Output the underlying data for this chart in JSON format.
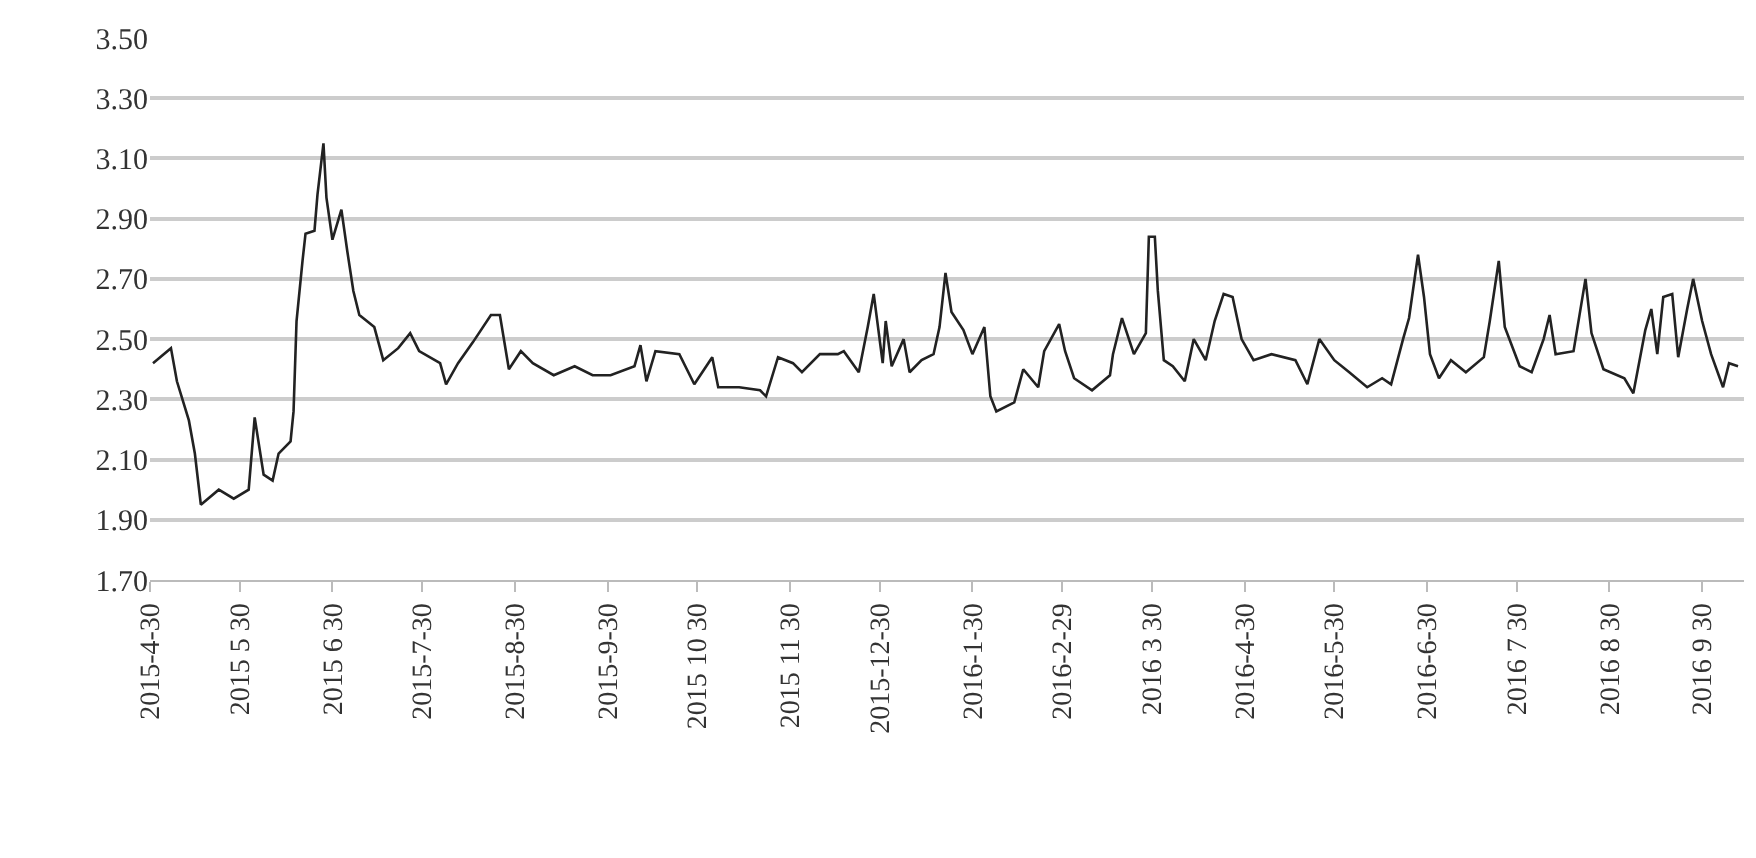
{
  "chart_data": {
    "type": "line",
    "line_style": "solid",
    "marker": "none",
    "grid": "y",
    "xlim": [
      "2015-04-30",
      "2016-10-14"
    ],
    "xticks": [
      {
        "value": "2015-04-30",
        "label": "2015-4-30"
      },
      {
        "value": "2015-05-30",
        "label": "2015 5 30"
      },
      {
        "value": "2015-06-30",
        "label": "2015 6 30"
      },
      {
        "value": "2015-07-30",
        "label": "2015-7-30"
      },
      {
        "value": "2015-08-30",
        "label": "2015-8-30"
      },
      {
        "value": "2015-09-30",
        "label": "2015-9-30"
      },
      {
        "value": "2015-10-30",
        "label": "2015 10 30"
      },
      {
        "value": "2015-11-30",
        "label": "2015 11 30"
      },
      {
        "value": "2015-12-30",
        "label": "2015-12-30"
      },
      {
        "value": "2016-01-30",
        "label": "2016-1-30"
      },
      {
        "value": "2016-02-29",
        "label": "2016-2-29"
      },
      {
        "value": "2016-03-30",
        "label": "2016 3 30"
      },
      {
        "value": "2016-04-30",
        "label": "2016-4-30"
      },
      {
        "value": "2016-05-30",
        "label": "2016-5-30"
      },
      {
        "value": "2016-06-30",
        "label": "2016-6-30"
      },
      {
        "value": "2016-07-30",
        "label": "2016 7 30"
      },
      {
        "value": "2016-08-30",
        "label": "2016 8 30"
      },
      {
        "value": "2016-09-30",
        "label": "2016 9 30"
      }
    ],
    "ylim": [
      1.7,
      3.5
    ],
    "yticks": [
      {
        "value": 1.7,
        "label": "1.70"
      },
      {
        "value": 1.9,
        "label": "1.90"
      },
      {
        "value": 2.1,
        "label": "2.10"
      },
      {
        "value": 2.3,
        "label": "2.30"
      },
      {
        "value": 2.5,
        "label": "2.50"
      },
      {
        "value": 2.7,
        "label": "2.70"
      },
      {
        "value": 2.9,
        "label": "2.90"
      },
      {
        "value": 3.1,
        "label": "3.10"
      },
      {
        "value": 3.3,
        "label": "3.30"
      },
      {
        "value": 3.5,
        "label": "3.50"
      }
    ],
    "x": [
      "2015-05-01",
      "2015-05-07",
      "2015-05-09",
      "2015-05-13",
      "2015-05-15",
      "2015-05-17",
      "2015-05-23",
      "2015-05-28",
      "2015-06-02",
      "2015-06-04",
      "2015-06-07",
      "2015-06-10",
      "2015-06-12",
      "2015-06-16",
      "2015-06-17",
      "2015-06-18",
      "2015-06-20",
      "2015-06-21",
      "2015-06-24",
      "2015-06-25",
      "2015-06-27",
      "2015-06-28",
      "2015-06-30",
      "2015-07-03",
      "2015-07-05",
      "2015-07-07",
      "2015-07-09",
      "2015-07-14",
      "2015-07-17",
      "2015-07-22",
      "2015-07-26",
      "2015-07-29",
      "2015-08-05",
      "2015-08-07",
      "2015-08-11",
      "2015-08-16",
      "2015-08-22",
      "2015-08-25",
      "2015-08-28",
      "2015-09-01",
      "2015-09-05",
      "2015-09-12",
      "2015-09-19",
      "2015-09-25",
      "2015-10-01",
      "2015-10-09",
      "2015-10-11",
      "2015-10-13",
      "2015-10-16",
      "2015-10-24",
      "2015-10-29",
      "2015-11-04",
      "2015-11-06",
      "2015-11-13",
      "2015-11-20",
      "2015-11-22",
      "2015-11-26",
      "2015-12-01",
      "2015-12-04",
      "2015-12-10",
      "2015-12-16",
      "2015-12-18",
      "2015-12-23",
      "2015-12-26",
      "2015-12-28",
      "2015-12-31",
      "2016-01-01",
      "2016-01-03",
      "2016-01-07",
      "2016-01-09",
      "2016-01-13",
      "2016-01-17",
      "2016-01-19",
      "2016-01-21",
      "2016-01-23",
      "2016-01-27",
      "2016-01-30",
      "2016-02-03",
      "2016-02-05",
      "2016-02-07",
      "2016-02-13",
      "2016-02-16",
      "2016-02-21",
      "2016-02-23",
      "2016-02-28",
      "2016-03-01",
      "2016-03-04",
      "2016-03-10",
      "2016-03-16",
      "2016-03-17",
      "2016-03-20",
      "2016-03-24",
      "2016-03-28",
      "2016-03-29",
      "2016-03-31",
      "2016-04-01",
      "2016-04-03",
      "2016-04-06",
      "2016-04-10",
      "2016-04-13",
      "2016-04-17",
      "2016-04-20",
      "2016-04-23",
      "2016-04-26",
      "2016-04-29",
      "2016-05-03",
      "2016-05-09",
      "2016-05-17",
      "2016-05-21",
      "2016-05-25",
      "2016-05-30",
      "2016-06-04",
      "2016-06-10",
      "2016-06-15",
      "2016-06-18",
      "2016-06-22",
      "2016-06-24",
      "2016-06-27",
      "2016-06-29",
      "2016-07-01",
      "2016-07-04",
      "2016-07-08",
      "2016-07-13",
      "2016-07-19",
      "2016-07-21",
      "2016-07-24",
      "2016-07-26",
      "2016-07-31",
      "2016-08-04",
      "2016-08-08",
      "2016-08-10",
      "2016-08-12",
      "2016-08-18",
      "2016-08-22",
      "2016-08-24",
      "2016-08-28",
      "2016-09-04",
      "2016-09-07",
      "2016-09-11",
      "2016-09-13",
      "2016-09-15",
      "2016-09-17",
      "2016-09-20",
      "2016-09-22",
      "2016-09-25",
      "2016-09-27",
      "2016-09-30",
      "2016-10-03",
      "2016-10-07",
      "2016-10-09",
      "2016-10-12"
    ],
    "series": [
      {
        "color": "#222222",
        "values": [
          2.42,
          2.47,
          2.36,
          2.23,
          2.12,
          1.95,
          2.0,
          1.97,
          2.0,
          2.24,
          2.05,
          2.03,
          2.12,
          2.16,
          2.26,
          2.56,
          2.76,
          2.85,
          2.86,
          2.98,
          3.15,
          2.97,
          2.83,
          2.93,
          2.79,
          2.66,
          2.58,
          2.54,
          2.43,
          2.47,
          2.52,
          2.46,
          2.42,
          2.35,
          2.42,
          2.49,
          2.58,
          2.58,
          2.4,
          2.46,
          2.42,
          2.38,
          2.41,
          2.38,
          2.38,
          2.41,
          2.48,
          2.36,
          2.46,
          2.45,
          2.35,
          2.44,
          2.34,
          2.34,
          2.33,
          2.31,
          2.44,
          2.42,
          2.39,
          2.45,
          2.45,
          2.46,
          2.39,
          2.54,
          2.65,
          2.42,
          2.56,
          2.41,
          2.5,
          2.39,
          2.43,
          2.45,
          2.54,
          2.72,
          2.59,
          2.53,
          2.45,
          2.54,
          2.31,
          2.26,
          2.29,
          2.4,
          2.34,
          2.46,
          2.55,
          2.46,
          2.37,
          2.33,
          2.38,
          2.45,
          2.57,
          2.45,
          2.52,
          2.84,
          2.84,
          2.66,
          2.43,
          2.41,
          2.36,
          2.5,
          2.43,
          2.56,
          2.65,
          2.64,
          2.5,
          2.43,
          2.45,
          2.43,
          2.35,
          2.5,
          2.43,
          2.39,
          2.34,
          2.37,
          2.35,
          2.5,
          2.57,
          2.78,
          2.64,
          2.45,
          2.37,
          2.43,
          2.39,
          2.44,
          2.56,
          2.76,
          2.54,
          2.41,
          2.39,
          2.5,
          2.58,
          2.45,
          2.46,
          2.7,
          2.52,
          2.4,
          2.37,
          2.32,
          2.53,
          2.6,
          2.45,
          2.64,
          2.65,
          2.44,
          2.6,
          2.7,
          2.56,
          2.45,
          2.34,
          2.42,
          2.41
        ]
      }
    ]
  }
}
